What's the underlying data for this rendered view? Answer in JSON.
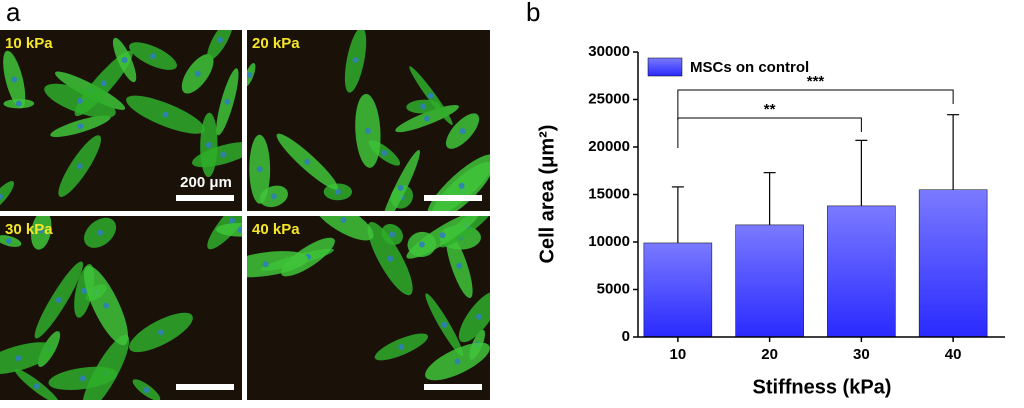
{
  "panel_a": {
    "label": "a",
    "images": [
      "10 kPa",
      "20 kPa",
      "30 kPa",
      "40 kPa"
    ],
    "scale_bar_label": "200 μm"
  },
  "chart_data": {
    "type": "bar",
    "panel_label": "b",
    "x_label": "Stiffness (kPa)",
    "y_label": "Cell area (μm²)",
    "categories": [
      "10",
      "20",
      "30",
      "40"
    ],
    "series": [
      {
        "name": "MSCs on control",
        "color": "#2a2aff",
        "values": [
          9900,
          11800,
          13800,
          15500
        ],
        "errors": [
          5900,
          5500,
          6900,
          7900
        ]
      }
    ],
    "ylim": [
      0,
      30000
    ],
    "yticks": [
      0,
      5000,
      10000,
      15000,
      20000,
      25000,
      30000
    ],
    "annotations": [
      "**",
      "***"
    ],
    "legend": "upper left"
  }
}
